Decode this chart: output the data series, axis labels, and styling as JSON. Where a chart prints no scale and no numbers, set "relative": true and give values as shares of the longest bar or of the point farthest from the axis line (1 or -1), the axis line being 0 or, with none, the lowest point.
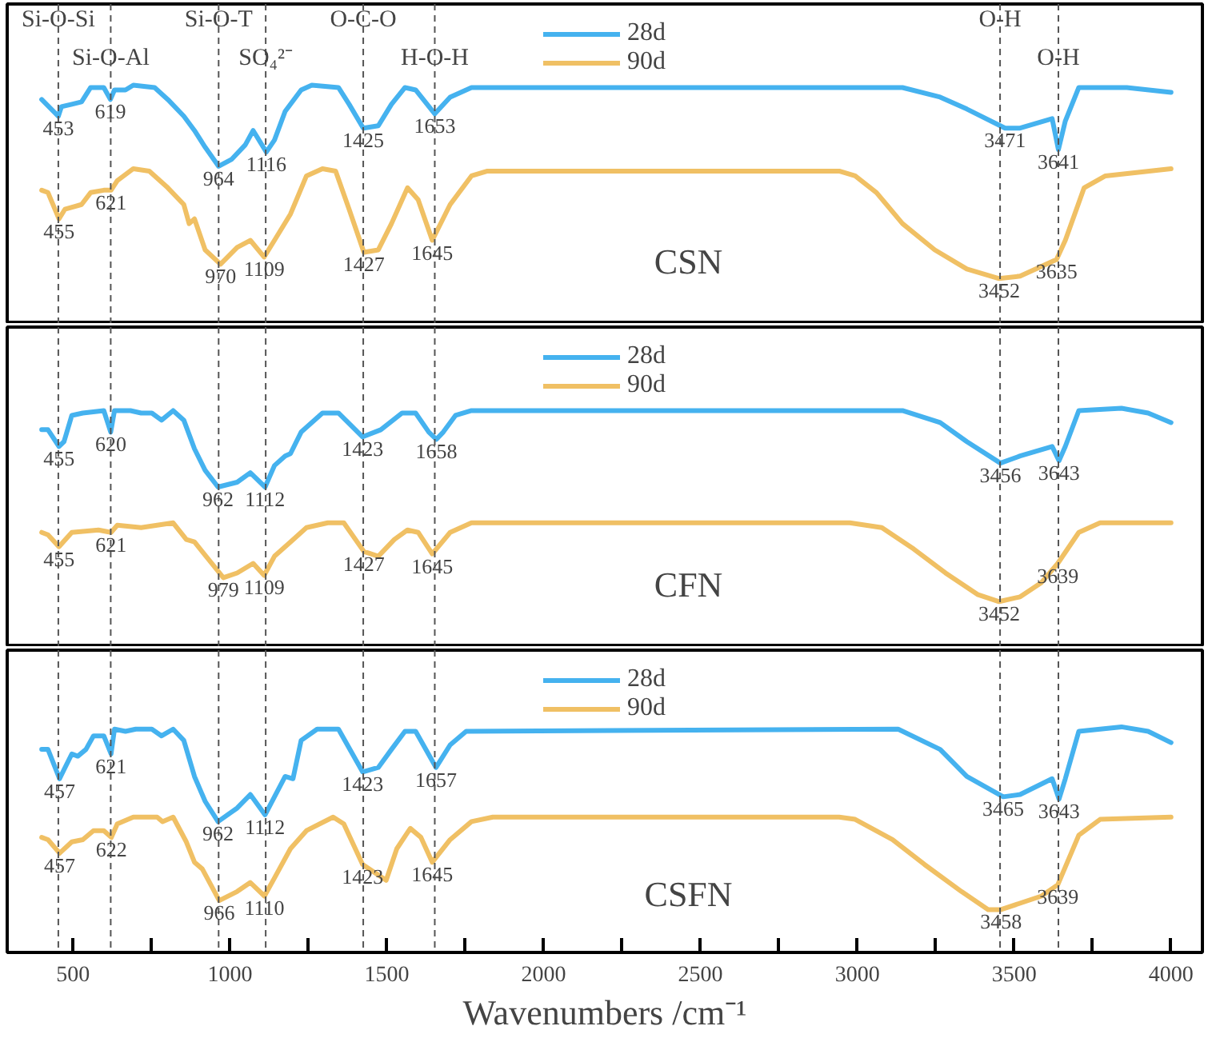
{
  "chart_data": [
    {
      "type": "line",
      "relative": true,
      "xlim": [
        290,
        4100
      ],
      "tick_labels": false,
      "legend": "top",
      "series": [
        {
          "name": "28d",
          "color": "#45b2ef",
          "x": [
            400,
            453,
            463,
            496,
            527,
            556,
            598,
            619,
            632,
            667,
            692,
            760,
            802,
            853,
            887,
            921,
            964,
            1006,
            1049,
            1074,
            1116,
            1142,
            1176,
            1227,
            1261,
            1346,
            1380,
            1425,
            1473,
            1515,
            1558,
            1592,
            1653,
            1702,
            1770,
            2500,
            3144,
            3264,
            3349,
            3471,
            3519,
            3621,
            3641,
            3663,
            3706,
            3859,
            4000
          ],
          "values": [
            0.94,
            0.87,
            0.91,
            0.92,
            0.93,
            0.99,
            0.99,
            0.94,
            0.98,
            0.98,
            1.0,
            0.99,
            0.94,
            0.87,
            0.81,
            0.74,
            0.66,
            0.69,
            0.75,
            0.81,
            0.72,
            0.77,
            0.89,
            0.98,
            1.0,
            0.99,
            0.92,
            0.82,
            0.83,
            0.92,
            0.99,
            0.98,
            0.88,
            0.95,
            0.99,
            0.99,
            0.99,
            0.95,
            0.9,
            0.82,
            0.82,
            0.86,
            0.73,
            0.85,
            0.99,
            0.99,
            0.97
          ]
        },
        {
          "name": "90d",
          "color": "#f0c064",
          "x": [
            400,
            420,
            455,
            474,
            527,
            556,
            598,
            621,
            641,
            692,
            743,
            802,
            853,
            870,
            887,
            921,
            970,
            1023,
            1065,
            1109,
            1142,
            1193,
            1244,
            1295,
            1337,
            1380,
            1427,
            1473,
            1515,
            1566,
            1600,
            1645,
            1702,
            1770,
            1821,
            2942,
            2993,
            3061,
            3144,
            3247,
            3349,
            3452,
            3519,
            3635,
            3663,
            3723,
            3791,
            4000
          ],
          "values": [
            0.56,
            0.55,
            0.44,
            0.48,
            0.5,
            0.55,
            0.56,
            0.56,
            0.6,
            0.65,
            0.64,
            0.57,
            0.5,
            0.42,
            0.44,
            0.31,
            0.25,
            0.32,
            0.35,
            0.28,
            0.35,
            0.46,
            0.62,
            0.65,
            0.64,
            0.48,
            0.3,
            0.31,
            0.42,
            0.57,
            0.52,
            0.35,
            0.5,
            0.62,
            0.64,
            0.64,
            0.62,
            0.55,
            0.42,
            0.31,
            0.23,
            0.19,
            0.2,
            0.27,
            0.35,
            0.57,
            0.62,
            0.65
          ]
        }
      ],
      "ref_lines": [
        {
          "axis": "x",
          "value": 453,
          "label": "Si-O-Si",
          "color": "#555555",
          "line_style": "dashed"
        },
        {
          "axis": "x",
          "value": 620,
          "label": "Si-O-Al",
          "color": "#555555",
          "line_style": "dashed"
        },
        {
          "axis": "x",
          "value": 964,
          "label": "Si-O-T",
          "color": "#555555",
          "line_style": "dashed"
        },
        {
          "axis": "x",
          "value": 1114,
          "label": "SO₄²⁻",
          "color": "#555555",
          "line_style": "dashed"
        },
        {
          "axis": "x",
          "value": 1425,
          "label": "O-C-O",
          "color": "#555555",
          "line_style": "dashed"
        },
        {
          "axis": "x",
          "value": 1653,
          "label": "H-O-H",
          "color": "#555555",
          "line_style": "dashed"
        },
        {
          "axis": "x",
          "value": 3455,
          "label": "O-H",
          "color": "#555555",
          "line_style": "dashed"
        },
        {
          "axis": "x",
          "value": 3641,
          "label": "O-H",
          "color": "#555555",
          "line_style": "dashed"
        }
      ],
      "annotations": [
        "CSN",
        {
          "text": "453",
          "x": 453,
          "y": 0.87
        },
        {
          "text": "619",
          "x": 619,
          "y": 0.94
        },
        {
          "text": "964",
          "x": 964,
          "y": 0.66
        },
        {
          "text": "1116",
          "x": 1116,
          "y": 0.72
        },
        {
          "text": "1425",
          "x": 1425,
          "y": 0.82
        },
        {
          "text": "1653",
          "x": 1653,
          "y": 0.88
        },
        {
          "text": "3471",
          "x": 3471,
          "y": 0.82
        },
        {
          "text": "3641",
          "x": 3641,
          "y": 0.73
        },
        {
          "text": "455",
          "x": 455,
          "y": 0.44
        },
        {
          "text": "621",
          "x": 621,
          "y": 0.56
        },
        {
          "text": "970",
          "x": 970,
          "y": 0.25
        },
        {
          "text": "1109",
          "x": 1109,
          "y": 0.28
        },
        {
          "text": "1427",
          "x": 1427,
          "y": 0.3
        },
        {
          "text": "1645",
          "x": 1645,
          "y": 0.35
        },
        {
          "text": "3452",
          "x": 3452,
          "y": 0.19
        },
        {
          "text": "3635",
          "x": 3635,
          "y": 0.27
        }
      ]
    },
    {
      "type": "line",
      "relative": true,
      "xlim": [
        290,
        4100
      ],
      "tick_labels": false,
      "legend": "top",
      "series": [
        {
          "name": "28d",
          "color": "#45b2ef",
          "x": [
            400,
            420,
            455,
            471,
            496,
            531,
            598,
            620,
            632,
            683,
            717,
            751,
            782,
            819,
            853,
            887,
            921,
            962,
            1023,
            1065,
            1112,
            1142,
            1176,
            1193,
            1227,
            1295,
            1346,
            1423,
            1481,
            1549,
            1592,
            1634,
            1658,
            1680,
            1719,
            1770,
            3144,
            3264,
            3349,
            3456,
            3519,
            3621,
            3643,
            3663,
            3706,
            3842,
            3927,
            4000
          ],
          "values": [
            0.91,
            0.91,
            0.84,
            0.86,
            0.97,
            0.98,
            0.99,
            0.9,
            0.99,
            0.99,
            0.98,
            0.98,
            0.95,
            0.99,
            0.95,
            0.83,
            0.74,
            0.67,
            0.69,
            0.73,
            0.67,
            0.76,
            0.8,
            0.81,
            0.9,
            0.98,
            0.98,
            0.88,
            0.91,
            0.98,
            0.98,
            0.9,
            0.87,
            0.9,
            0.97,
            0.99,
            0.99,
            0.94,
            0.86,
            0.77,
            0.8,
            0.84,
            0.78,
            0.84,
            0.99,
            1.0,
            0.98,
            0.94
          ]
        },
        {
          "name": "90d",
          "color": "#f0c064",
          "x": [
            400,
            420,
            455,
            496,
            581,
            621,
            641,
            717,
            819,
            861,
            887,
            979,
            1023,
            1074,
            1109,
            1142,
            1193,
            1244,
            1312,
            1363,
            1427,
            1473,
            1524,
            1566,
            1600,
            1645,
            1702,
            1770,
            2976,
            3078,
            3180,
            3281,
            3383,
            3452,
            3519,
            3587,
            3639,
            3706,
            3774,
            4000
          ],
          "values": [
            0.48,
            0.47,
            0.42,
            0.48,
            0.49,
            0.48,
            0.51,
            0.5,
            0.52,
            0.45,
            0.44,
            0.29,
            0.31,
            0.35,
            0.3,
            0.38,
            0.44,
            0.5,
            0.52,
            0.52,
            0.4,
            0.38,
            0.45,
            0.49,
            0.48,
            0.39,
            0.48,
            0.52,
            0.52,
            0.5,
            0.41,
            0.31,
            0.22,
            0.19,
            0.21,
            0.27,
            0.35,
            0.48,
            0.52,
            0.52
          ]
        }
      ],
      "ref_lines": [
        {
          "axis": "x",
          "value": 453,
          "color": "#555555",
          "line_style": "dashed"
        },
        {
          "axis": "x",
          "value": 620,
          "color": "#555555",
          "line_style": "dashed"
        },
        {
          "axis": "x",
          "value": 964,
          "color": "#555555",
          "line_style": "dashed"
        },
        {
          "axis": "x",
          "value": 1114,
          "color": "#555555",
          "line_style": "dashed"
        },
        {
          "axis": "x",
          "value": 1425,
          "color": "#555555",
          "line_style": "dashed"
        },
        {
          "axis": "x",
          "value": 1653,
          "color": "#555555",
          "line_style": "dashed"
        },
        {
          "axis": "x",
          "value": 3455,
          "color": "#555555",
          "line_style": "dashed"
        },
        {
          "axis": "x",
          "value": 3641,
          "color": "#555555",
          "line_style": "dashed"
        }
      ],
      "annotations": [
        "CFN",
        {
          "text": "455",
          "x": 455,
          "y": 0.84
        },
        {
          "text": "620",
          "x": 620,
          "y": 0.9
        },
        {
          "text": "962",
          "x": 962,
          "y": 0.67
        },
        {
          "text": "1112",
          "x": 1112,
          "y": 0.67
        },
        {
          "text": "1423",
          "x": 1423,
          "y": 0.88
        },
        {
          "text": "1658",
          "x": 1658,
          "y": 0.87
        },
        {
          "text": "3456",
          "x": 3456,
          "y": 0.77
        },
        {
          "text": "3643",
          "x": 3643,
          "y": 0.78
        },
        {
          "text": "455",
          "x": 455,
          "y": 0.42
        },
        {
          "text": "621",
          "x": 621,
          "y": 0.48
        },
        {
          "text": "979",
          "x": 979,
          "y": 0.29
        },
        {
          "text": "1109",
          "x": 1109,
          "y": 0.3
        },
        {
          "text": "1427",
          "x": 1427,
          "y": 0.4
        },
        {
          "text": "1645",
          "x": 1645,
          "y": 0.39
        },
        {
          "text": "3452",
          "x": 3452,
          "y": 0.19
        },
        {
          "text": "3639",
          "x": 3639,
          "y": 0.35
        }
      ]
    },
    {
      "type": "line",
      "relative": true,
      "xlim": [
        290,
        4100
      ],
      "tick_labels": "x",
      "legend": "top",
      "xlabel": "Wavenumbers /cm⁻¹",
      "xticks": [
        500,
        {
          "value": 750,
          "label": null
        },
        1000,
        {
          "value": 1250,
          "label": null
        },
        1500,
        {
          "value": 1750,
          "label": null
        },
        2000,
        {
          "value": 2250,
          "label": null
        },
        2500,
        {
          "value": 2750,
          "label": null
        },
        3000,
        {
          "value": 3250,
          "label": null
        },
        3500,
        {
          "value": 3750,
          "label": null
        },
        4000
      ],
      "series": [
        {
          "name": "28d",
          "color": "#45b2ef",
          "x": [
            400,
            420,
            457,
            471,
            496,
            515,
            541,
            565,
            598,
            621,
            632,
            667,
            700,
            751,
            782,
            819,
            853,
            887,
            921,
            962,
            1023,
            1065,
            1112,
            1142,
            1176,
            1201,
            1227,
            1278,
            1346,
            1423,
            1473,
            1515,
            1558,
            1592,
            1657,
            1702,
            1753,
            3130,
            3264,
            3349,
            3465,
            3519,
            3621,
            3643,
            3663,
            3706,
            3842,
            3927,
            4000
          ],
          "values": [
            0.9,
            0.9,
            0.77,
            0.81,
            0.88,
            0.87,
            0.9,
            0.96,
            0.96,
            0.88,
            0.99,
            0.98,
            0.99,
            0.99,
            0.96,
            0.99,
            0.94,
            0.78,
            0.67,
            0.58,
            0.64,
            0.7,
            0.61,
            0.69,
            0.78,
            0.77,
            0.94,
            0.99,
            0.99,
            0.8,
            0.82,
            0.9,
            0.98,
            0.98,
            0.82,
            0.92,
            0.98,
            0.99,
            0.9,
            0.78,
            0.69,
            0.7,
            0.77,
            0.68,
            0.77,
            0.98,
            1.0,
            0.98,
            0.93
          ]
        },
        {
          "name": "90d",
          "color": "#f0c064",
          "x": [
            400,
            420,
            457,
            496,
            531,
            565,
            598,
            622,
            641,
            692,
            768,
            785,
            819,
            861,
            887,
            912,
            966,
            1023,
            1065,
            1110,
            1142,
            1193,
            1244,
            1329,
            1363,
            1423,
            1498,
            1532,
            1575,
            1609,
            1645,
            1702,
            1770,
            1838,
            2942,
            2993,
            3112,
            3214,
            3332,
            3417,
            3458,
            3587,
            3639,
            3706,
            3774,
            4000
          ],
          "values": [
            0.51,
            0.5,
            0.44,
            0.49,
            0.5,
            0.54,
            0.54,
            0.51,
            0.57,
            0.6,
            0.6,
            0.58,
            0.6,
            0.49,
            0.4,
            0.37,
            0.23,
            0.27,
            0.31,
            0.25,
            0.33,
            0.46,
            0.54,
            0.6,
            0.57,
            0.39,
            0.32,
            0.46,
            0.55,
            0.51,
            0.4,
            0.5,
            0.58,
            0.6,
            0.6,
            0.59,
            0.5,
            0.39,
            0.27,
            0.19,
            0.19,
            0.25,
            0.3,
            0.52,
            0.59,
            0.6
          ]
        }
      ],
      "ref_lines": [
        {
          "axis": "x",
          "value": 453,
          "color": "#555555",
          "line_style": "dashed"
        },
        {
          "axis": "x",
          "value": 620,
          "color": "#555555",
          "line_style": "dashed"
        },
        {
          "axis": "x",
          "value": 964,
          "color": "#555555",
          "line_style": "dashed"
        },
        {
          "axis": "x",
          "value": 1114,
          "color": "#555555",
          "line_style": "dashed"
        },
        {
          "axis": "x",
          "value": 1425,
          "color": "#555555",
          "line_style": "dashed"
        },
        {
          "axis": "x",
          "value": 1653,
          "color": "#555555",
          "line_style": "dashed"
        },
        {
          "axis": "x",
          "value": 3455,
          "color": "#555555",
          "line_style": "dashed"
        },
        {
          "axis": "x",
          "value": 3641,
          "color": "#555555",
          "line_style": "dashed"
        }
      ],
      "annotations": [
        "CSFN",
        {
          "text": "457",
          "x": 457,
          "y": 0.77
        },
        {
          "text": "621",
          "x": 621,
          "y": 0.88
        },
        {
          "text": "962",
          "x": 962,
          "y": 0.58
        },
        {
          "text": "1112",
          "x": 1112,
          "y": 0.61
        },
        {
          "text": "1423",
          "x": 1423,
          "y": 0.8
        },
        {
          "text": "1657",
          "x": 1657,
          "y": 0.82
        },
        {
          "text": "3465",
          "x": 3465,
          "y": 0.69
        },
        {
          "text": "3643",
          "x": 3643,
          "y": 0.68
        },
        {
          "text": "457",
          "x": 457,
          "y": 0.44
        },
        {
          "text": "622",
          "x": 622,
          "y": 0.51
        },
        {
          "text": "966",
          "x": 966,
          "y": 0.23
        },
        {
          "text": "1110",
          "x": 1110,
          "y": 0.25
        },
        {
          "text": "1423",
          "x": 1423,
          "y": 0.39
        },
        {
          "text": "1645",
          "x": 1645,
          "y": 0.4
        },
        {
          "text": "3458",
          "x": 3458,
          "y": 0.19
        },
        {
          "text": "3639",
          "x": 3639,
          "y": 0.3
        }
      ]
    }
  ]
}
